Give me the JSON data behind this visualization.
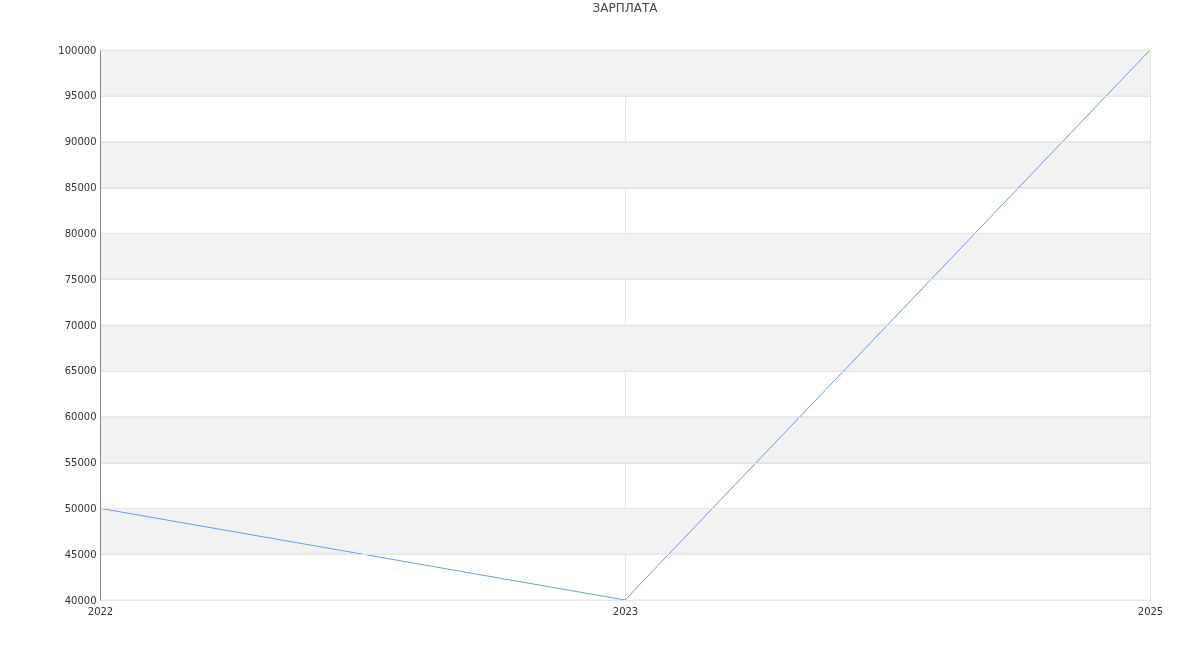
{
  "chart_data": {
    "type": "line",
    "title": "ЗАРПЛАТА",
    "categories": [
      "2022",
      "2023",
      "2025"
    ],
    "series": [
      {
        "color": "#6d9bf1",
        "values": [
          50000,
          40000,
          100000
        ]
      }
    ],
    "ylim": [
      40000,
      100000
    ],
    "yticks": [
      40000,
      45000,
      50000,
      55000,
      60000,
      65000,
      70000,
      75000,
      80000,
      85000,
      90000,
      95000,
      100000
    ],
    "bands": [
      {
        "axis": "y",
        "from": 45000,
        "to": 50000,
        "color": "#f2f2f2"
      },
      {
        "axis": "y",
        "from": 55000,
        "to": 60000,
        "color": "#f2f2f2"
      },
      {
        "axis": "y",
        "from": 65000,
        "to": 70000,
        "color": "#f2f2f2"
      },
      {
        "axis": "y",
        "from": 75000,
        "to": 80000,
        "color": "#f2f2f2"
      },
      {
        "axis": "y",
        "from": 85000,
        "to": 90000,
        "color": "#f2f2f2"
      },
      {
        "axis": "y",
        "from": 95000,
        "to": 100000,
        "color": "#f2f2f2"
      }
    ],
    "grid": true,
    "marker": "none",
    "line_style": "solid"
  }
}
